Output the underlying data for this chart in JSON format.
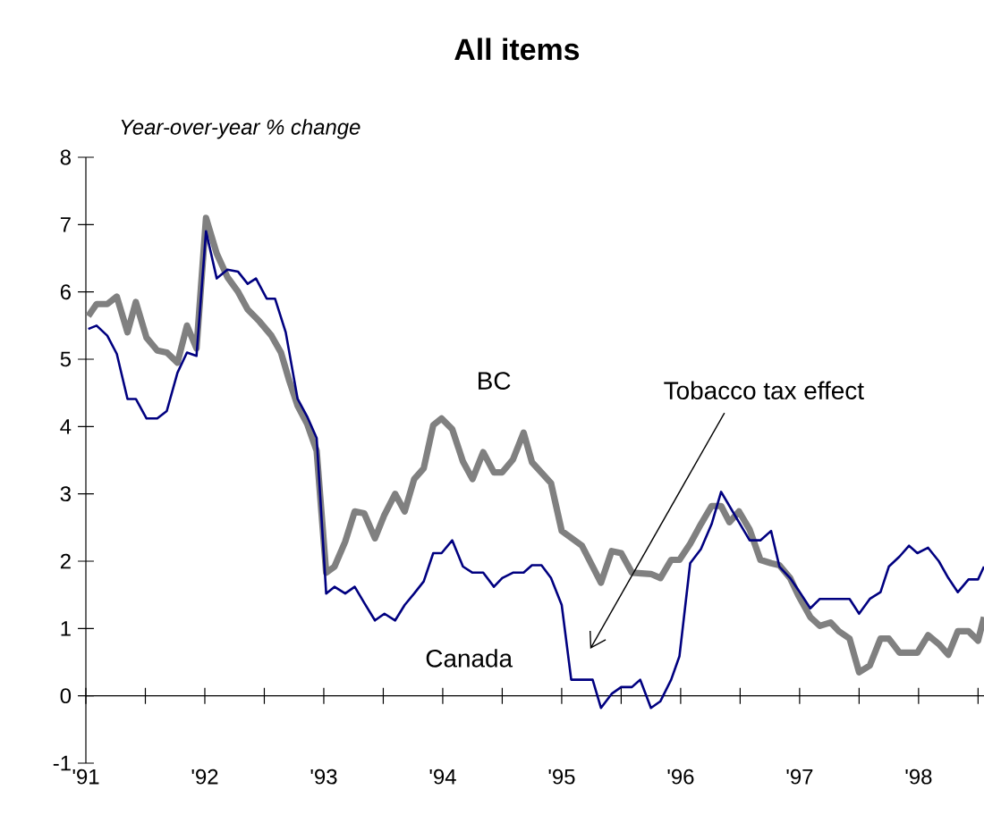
{
  "chart_data": {
    "type": "line",
    "title": "All items",
    "ylabel": "Year-over-year % change",
    "ylim": [
      -1,
      8
    ],
    "yticks": [
      -1,
      0,
      1,
      2,
      3,
      4,
      5,
      6,
      7,
      8
    ],
    "xlim": [
      1991,
      1998.55
    ],
    "xticks": [
      {
        "value": 1991,
        "label": "'91"
      },
      {
        "value": 1991.5,
        "label": null
      },
      {
        "value": 1992,
        "label": "'92"
      },
      {
        "value": 1992.5,
        "label": null
      },
      {
        "value": 1993,
        "label": "'93"
      },
      {
        "value": 1993.5,
        "label": null
      },
      {
        "value": 1994,
        "label": "'94"
      },
      {
        "value": 1994.5,
        "label": null
      },
      {
        "value": 1995,
        "label": "'95"
      },
      {
        "value": 1995.5,
        "label": null
      },
      {
        "value": 1996,
        "label": "'96"
      },
      {
        "value": 1996.5,
        "label": null
      },
      {
        "value": 1997,
        "label": "'97"
      },
      {
        "value": 1997.5,
        "label": null
      },
      {
        "value": 1998,
        "label": "'98"
      },
      {
        "value": 1998.5,
        "label": null
      }
    ],
    "series": [
      {
        "name": "BC",
        "color": "#808080",
        "x": [
          1991.02,
          1991.09,
          1991.18,
          1991.26,
          1991.35,
          1991.42,
          1991.51,
          1991.6,
          1991.68,
          1991.77,
          1991.85,
          1991.93,
          1992.01,
          1992.1,
          1992.19,
          1992.28,
          1992.36,
          1992.46,
          1992.56,
          1992.64,
          1992.71,
          1992.78,
          1992.86,
          1992.94,
          1993.02,
          1993.09,
          1993.18,
          1993.26,
          1993.34,
          1993.43,
          1993.51,
          1993.6,
          1993.68,
          1993.76,
          1993.84,
          1993.92,
          1993.99,
          1994.08,
          1994.17,
          1994.25,
          1994.34,
          1994.43,
          1994.5,
          1994.59,
          1994.68,
          1994.75,
          1994.91,
          1995.0,
          1995.17,
          1995.33,
          1995.42,
          1995.5,
          1995.59,
          1995.75,
          1995.83,
          1995.92,
          1995.99,
          1996.08,
          1996.17,
          1996.26,
          1996.34,
          1996.41,
          1996.49,
          1996.58,
          1996.67,
          1996.76,
          1996.83,
          1996.92,
          1996.99,
          1997.09,
          1997.17,
          1997.26,
          1997.33,
          1997.42,
          1997.5,
          1997.59,
          1997.68,
          1997.75,
          1997.84,
          1997.92,
          1997.99,
          1998.08,
          1998.17,
          1998.25,
          1998.33,
          1998.42,
          1998.5,
          1998.55
        ],
        "values": [
          5.64,
          5.82,
          5.82,
          5.93,
          5.4,
          5.85,
          5.32,
          5.13,
          5.1,
          4.95,
          5.5,
          5.16,
          7.1,
          6.57,
          6.22,
          6.0,
          5.74,
          5.56,
          5.35,
          5.1,
          4.68,
          4.31,
          4.04,
          3.64,
          1.83,
          1.92,
          2.29,
          2.74,
          2.71,
          2.34,
          2.69,
          3.0,
          2.74,
          3.22,
          3.38,
          4.02,
          4.12,
          3.96,
          3.48,
          3.22,
          3.62,
          3.32,
          3.32,
          3.51,
          3.91,
          3.47,
          3.16,
          2.45,
          2.23,
          1.68,
          2.15,
          2.12,
          1.83,
          1.81,
          1.75,
          2.02,
          2.02,
          2.26,
          2.55,
          2.82,
          2.82,
          2.58,
          2.74,
          2.47,
          2.02,
          1.97,
          1.94,
          1.75,
          1.49,
          1.17,
          1.04,
          1.09,
          0.96,
          0.85,
          0.35,
          0.45,
          0.85,
          0.85,
          0.64,
          0.64,
          0.64,
          0.9,
          0.77,
          0.61,
          0.96,
          0.96,
          0.82,
          1.17
        ]
      },
      {
        "name": "Canada",
        "color": "#000080",
        "x": [
          1991.02,
          1991.09,
          1991.18,
          1991.26,
          1991.35,
          1991.42,
          1991.51,
          1991.6,
          1991.68,
          1991.77,
          1991.85,
          1991.93,
          1992.01,
          1992.1,
          1992.19,
          1992.28,
          1992.36,
          1992.43,
          1992.52,
          1992.59,
          1992.68,
          1992.78,
          1992.86,
          1992.94,
          1993.02,
          1993.09,
          1993.18,
          1993.26,
          1993.34,
          1993.43,
          1993.51,
          1993.6,
          1993.68,
          1993.76,
          1993.84,
          1993.92,
          1993.99,
          1994.08,
          1994.17,
          1994.25,
          1994.34,
          1994.43,
          1994.5,
          1994.59,
          1994.68,
          1994.75,
          1994.83,
          1994.91,
          1995.0,
          1995.08,
          1995.17,
          1995.26,
          1995.33,
          1995.42,
          1995.5,
          1995.59,
          1995.66,
          1995.75,
          1995.83,
          1995.92,
          1995.99,
          1996.08,
          1996.17,
          1996.26,
          1996.34,
          1996.41,
          1996.49,
          1996.58,
          1996.67,
          1996.76,
          1996.83,
          1996.92,
          1996.99,
          1997.09,
          1997.17,
          1997.26,
          1997.33,
          1997.42,
          1997.5,
          1997.59,
          1997.68,
          1997.75,
          1997.84,
          1997.92,
          1997.99,
          1998.08,
          1998.17,
          1998.25,
          1998.33,
          1998.42,
          1998.5,
          1998.55
        ],
        "values": [
          5.45,
          5.5,
          5.35,
          5.08,
          4.41,
          4.41,
          4.12,
          4.12,
          4.23,
          4.8,
          5.1,
          5.05,
          6.9,
          6.2,
          6.33,
          6.3,
          6.12,
          6.2,
          5.9,
          5.9,
          5.4,
          4.41,
          4.15,
          3.83,
          1.52,
          1.62,
          1.52,
          1.62,
          1.38,
          1.12,
          1.22,
          1.12,
          1.35,
          1.52,
          1.7,
          2.12,
          2.12,
          2.31,
          1.92,
          1.83,
          1.83,
          1.62,
          1.75,
          1.83,
          1.83,
          1.94,
          1.94,
          1.75,
          1.35,
          0.24,
          0.24,
          0.24,
          -0.18,
          0.03,
          0.13,
          0.13,
          0.24,
          -0.18,
          -0.08,
          0.24,
          0.59,
          1.97,
          2.18,
          2.55,
          3.03,
          2.82,
          2.58,
          2.31,
          2.31,
          2.45,
          1.92,
          1.75,
          1.57,
          1.3,
          1.44,
          1.44,
          1.44,
          1.44,
          1.22,
          1.44,
          1.54,
          1.92,
          2.07,
          2.23,
          2.12,
          2.2,
          2.0,
          1.75,
          1.54,
          1.73,
          1.73,
          1.92
        ]
      }
    ],
    "annotations": [
      "Tobacco tax effect"
    ]
  }
}
